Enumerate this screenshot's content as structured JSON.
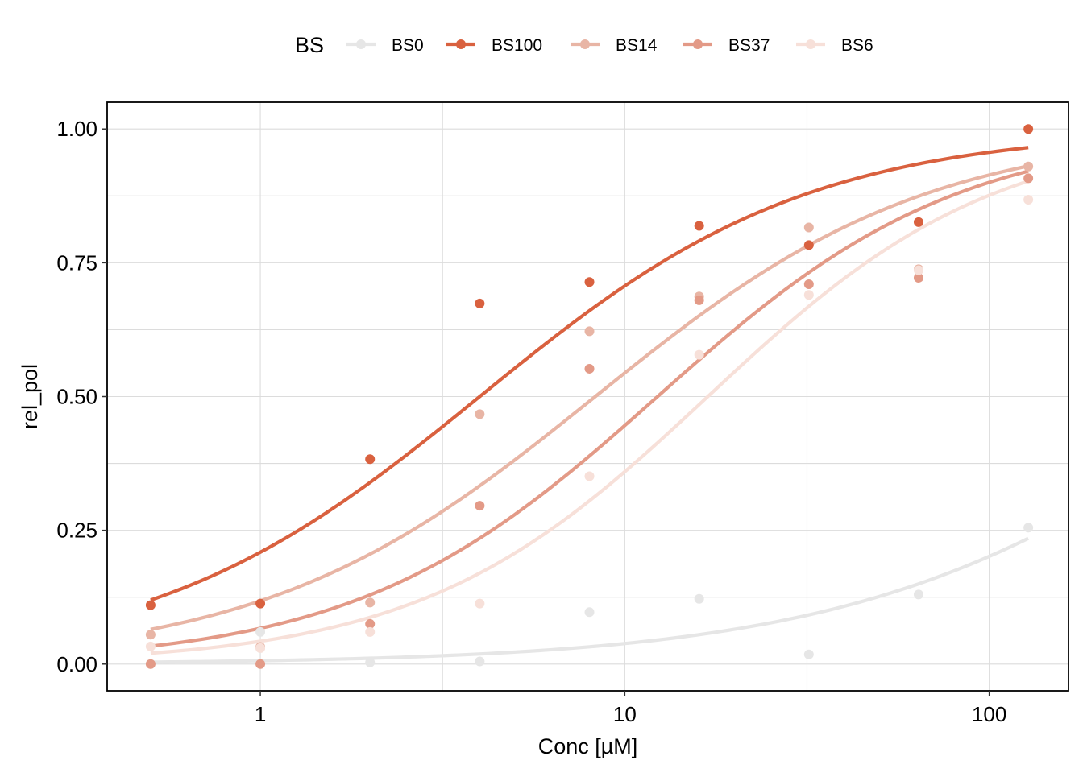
{
  "chart_data": {
    "type": "scatter",
    "xlabel": "Conc [µM]",
    "ylabel": "rel_pol",
    "x_scale": "log10",
    "xlim": [
      0.38,
      165
    ],
    "ylim": [
      -0.05,
      1.05
    ],
    "x_ticks": [
      {
        "value": 1,
        "label": "1"
      },
      {
        "value": 10,
        "label": "10"
      },
      {
        "value": 100,
        "label": "100"
      }
    ],
    "y_ticks": [
      {
        "value": 0,
        "label": "0.00"
      },
      {
        "value": 0.25,
        "label": "0.25"
      },
      {
        "value": 0.5,
        "label": "0.50"
      },
      {
        "value": 0.75,
        "label": "0.75"
      },
      {
        "value": 1.0,
        "label": "1.00"
      }
    ],
    "grid": true,
    "legend": {
      "title": "BS",
      "position": "top"
    },
    "series": [
      {
        "name": "BS0",
        "color": "#e6e6e6",
        "points": [
          [
            0.5,
            0.0
          ],
          [
            1,
            0.06
          ],
          [
            1,
            0.03
          ],
          [
            2,
            0.003
          ],
          [
            4,
            0.005
          ],
          [
            8,
            0.097
          ],
          [
            16,
            0.122
          ],
          [
            32,
            0.018
          ],
          [
            64,
            0.13
          ],
          [
            128,
            0.255
          ]
        ],
        "fit": {
          "ec50": 560,
          "hill": 0.8
        }
      },
      {
        "name": "BS100",
        "color": "#d9613f",
        "points": [
          [
            0.5,
            0.11
          ],
          [
            1,
            0.113
          ],
          [
            2,
            0.383
          ],
          [
            4,
            0.674
          ],
          [
            8,
            0.714
          ],
          [
            16,
            0.819
          ],
          [
            32,
            0.783
          ],
          [
            64,
            0.826
          ],
          [
            128,
            1.0
          ]
        ],
        "fit": {
          "ec50": 4.0,
          "hill": 0.96
        }
      },
      {
        "name": "BS14",
        "color": "#e8b5a5",
        "points": [
          [
            0.5,
            0.055
          ],
          [
            1,
            0.032
          ],
          [
            2,
            0.115
          ],
          [
            4,
            0.467
          ],
          [
            8,
            0.622
          ],
          [
            16,
            0.687
          ],
          [
            32,
            0.816
          ],
          [
            64,
            0.738
          ],
          [
            128,
            0.93
          ]
        ],
        "fit": {
          "ec50": 8.3,
          "hill": 0.95
        }
      },
      {
        "name": "BS37",
        "color": "#e39a87",
        "points": [
          [
            0.5,
            0.0
          ],
          [
            1,
            0.0
          ],
          [
            2,
            0.075
          ],
          [
            4,
            0.296
          ],
          [
            8,
            0.552
          ],
          [
            16,
            0.68
          ],
          [
            32,
            0.71
          ],
          [
            64,
            0.722
          ],
          [
            128,
            0.908
          ]
        ],
        "fit": {
          "ec50": 12.3,
          "hill": 1.05
        }
      },
      {
        "name": "BS6",
        "color": "#f7e0d9",
        "points": [
          [
            0.5,
            0.033
          ],
          [
            1,
            0.03
          ],
          [
            2,
            0.06
          ],
          [
            4,
            0.113
          ],
          [
            8,
            0.351
          ],
          [
            16,
            0.578
          ],
          [
            32,
            0.69
          ],
          [
            64,
            0.736
          ],
          [
            128,
            0.868
          ]
        ],
        "fit": {
          "ec50": 16.9,
          "hill": 1.1
        }
      }
    ]
  }
}
